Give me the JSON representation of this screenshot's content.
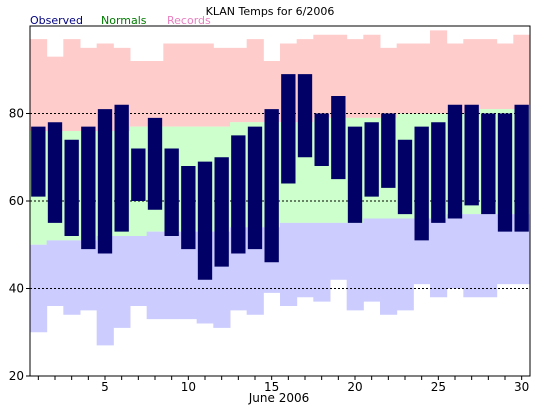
{
  "chart_data": {
    "type": "bar",
    "title": "KLAN Temps for 6/2006",
    "xlabel": "June 2006",
    "ylabel": "",
    "xlim": [
      0.5,
      30.5
    ],
    "ylim": [
      20,
      100
    ],
    "yticks": [
      20,
      40,
      60,
      80
    ],
    "xticks": [
      5,
      10,
      15,
      20,
      25,
      30
    ],
    "reference_lines": [
      40,
      60,
      80
    ],
    "legend": [
      "Observed",
      "Normals",
      "Records"
    ],
    "legend_position": "top-left",
    "colors": {
      "observed": "#000066",
      "normals": "#ccffcc",
      "records_high": "#ffcccc",
      "records_low": "#ccccff",
      "legend_observed": "#000080",
      "legend_normals": "#007a00",
      "legend_records": "#e87fc0"
    },
    "days": [
      1,
      2,
      3,
      4,
      5,
      6,
      7,
      8,
      9,
      10,
      11,
      12,
      13,
      14,
      15,
      16,
      17,
      18,
      19,
      20,
      21,
      22,
      23,
      24,
      25,
      26,
      27,
      28,
      29,
      30
    ],
    "series": [
      {
        "name": "Observed",
        "high": [
          77,
          78,
          74,
          77,
          81,
          82,
          72,
          79,
          72,
          68,
          69,
          70,
          75,
          77,
          81,
          89,
          89,
          80,
          84,
          77,
          78,
          80,
          74,
          77,
          78,
          82,
          82,
          80,
          80,
          82
        ],
        "low": [
          61,
          55,
          52,
          49,
          48,
          53,
          60,
          58,
          52,
          49,
          42,
          45,
          48,
          49,
          46,
          64,
          70,
          68,
          65,
          55,
          61,
          63,
          57,
          51,
          55,
          56,
          59,
          57,
          53,
          53
        ]
      },
      {
        "name": "Normals",
        "high": [
          76,
          76,
          76,
          76,
          76,
          76,
          77,
          77,
          77,
          77,
          77,
          77,
          78,
          78,
          78,
          78,
          78,
          79,
          79,
          79,
          79,
          79,
          80,
          80,
          80,
          80,
          80,
          81,
          81,
          81
        ],
        "low": [
          50,
          51,
          51,
          51,
          52,
          52,
          52,
          53,
          53,
          53,
          53,
          53,
          54,
          54,
          54,
          55,
          55,
          55,
          55,
          55,
          56,
          56,
          56,
          56,
          56,
          57,
          57,
          57,
          57,
          57
        ]
      },
      {
        "name": "Records",
        "high": [
          97,
          93,
          97,
          95,
          96,
          95,
          92,
          92,
          96,
          96,
          96,
          95,
          95,
          97,
          92,
          96,
          97,
          98,
          98,
          97,
          98,
          95,
          96,
          96,
          99,
          96,
          97,
          97,
          96,
          98
        ],
        "low": [
          30,
          36,
          34,
          35,
          27,
          31,
          36,
          33,
          33,
          33,
          32,
          31,
          35,
          34,
          39,
          36,
          38,
          37,
          42,
          35,
          37,
          34,
          35,
          41,
          38,
          40,
          38,
          38,
          41,
          41
        ]
      }
    ]
  }
}
